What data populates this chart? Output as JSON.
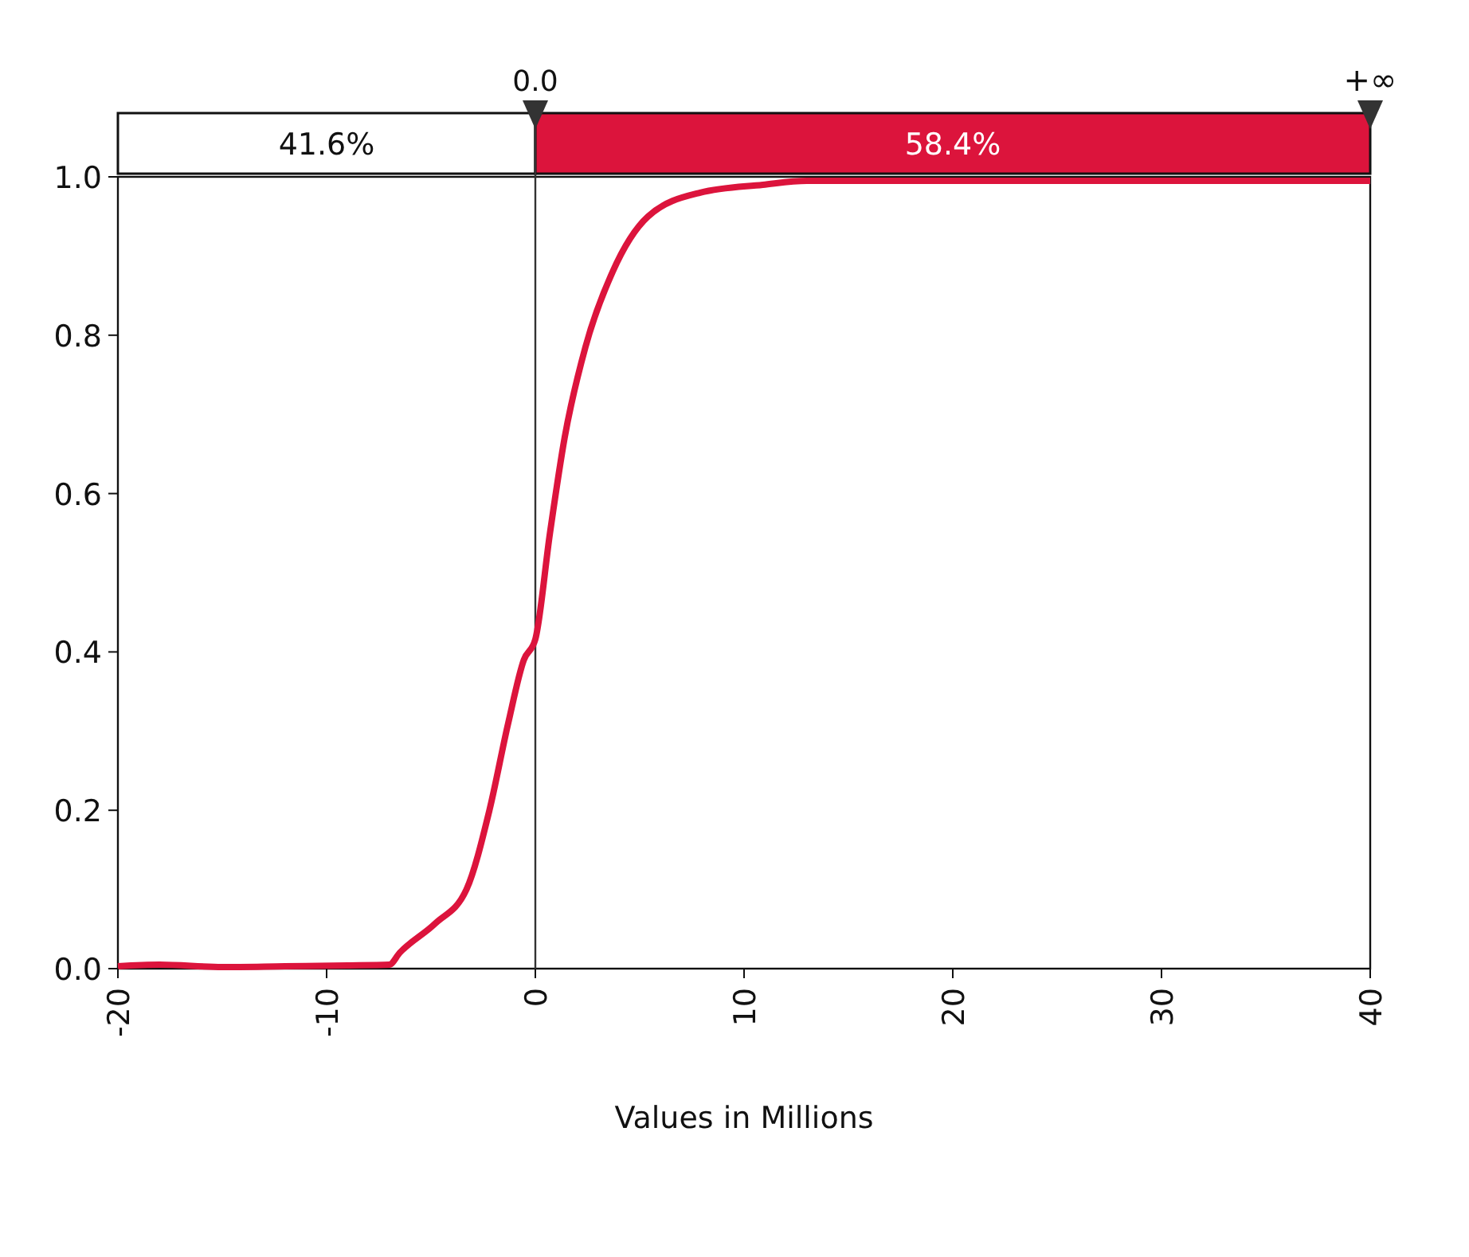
{
  "chart_data": {
    "type": "line",
    "xlabel": "Values in Millions",
    "x": [
      -20,
      -18,
      -15,
      -12,
      -9,
      -7,
      -6.5,
      -4.8,
      -3.3,
      -2.2,
      -1.3,
      -0.55,
      0,
      0.7,
      1.4,
      2.4,
      3.7,
      5.4,
      7.9,
      10.9,
      13,
      20,
      30,
      40
    ],
    "series": [
      {
        "color": "#dc143c",
        "values": [
          0.003,
          0.005,
          0.002,
          0.003,
          0.004,
          0.005,
          0.02,
          0.057,
          0.1,
          0.2,
          0.31,
          0.39,
          0.416,
          0.55,
          0.67,
          0.785,
          0.88,
          0.95,
          0.98,
          0.99,
          0.995,
          0.995,
          0.995,
          0.995
        ]
      }
    ],
    "xlim": [
      -20,
      40
    ],
    "xticks": [
      -20,
      -10,
      0,
      10,
      20,
      30,
      40
    ],
    "ylim": [
      0,
      1
    ],
    "yticks": [
      {
        "value": 0,
        "label": "0.0"
      },
      {
        "value": 0.2,
        "label": "0.2"
      },
      {
        "value": 0.4,
        "label": "0.4"
      },
      {
        "value": 0.6,
        "label": "0.6"
      },
      {
        "value": 0.8,
        "label": "0.8"
      },
      {
        "value": 1,
        "label": "1.0"
      }
    ],
    "grid": false,
    "ref_lines": [
      {
        "axis": "x",
        "value": 0,
        "label": "0.0",
        "color": "#333333"
      }
    ],
    "annotations": [
      "41.6%",
      "58.4%",
      "+∞"
    ]
  }
}
